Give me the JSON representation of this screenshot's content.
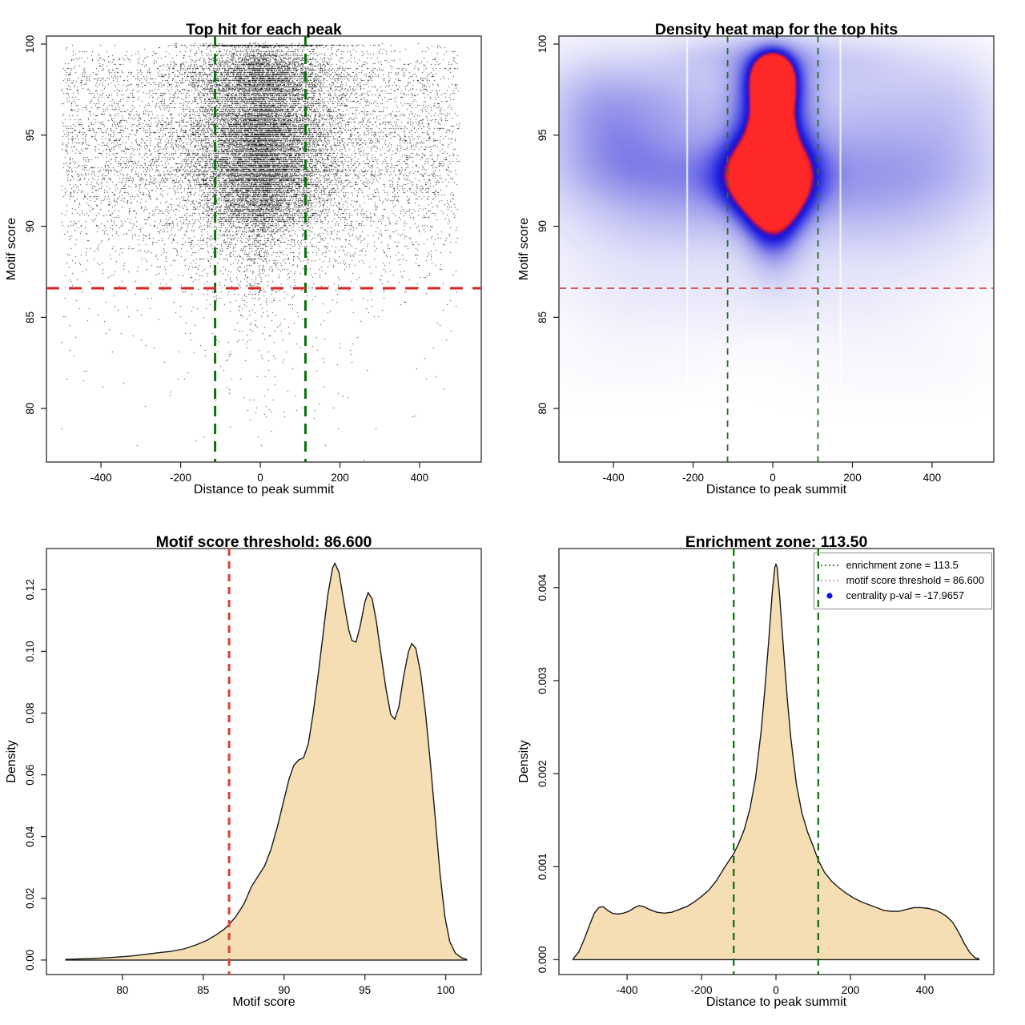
{
  "figure": {
    "background": "#ffffff"
  },
  "values": {
    "motif_score_threshold": 86.6,
    "enrichment_zone": 113.5,
    "centrality_p_val": -17.9657
  },
  "colors": {
    "density_fill": "#f5deb3",
    "density_stroke": "#1a1a1a",
    "axis": "#2b2b2b",
    "scatter_point": "#000000",
    "red_line_thick": "#d42a2a",
    "green_line_thick": "#0e6f0e",
    "heat_red_line": "#e04848",
    "heat_green_line": "#2a6e2a",
    "legend_green": "#2a7a2a",
    "legend_red": "#ef8080",
    "legend_blue": "#1111e0"
  },
  "chart_data": [
    {
      "type": "scatter",
      "title": "Top hit for each peak",
      "xlabel": "Distance to peak summit",
      "ylabel": "Motif score",
      "x_domain": [
        -537,
        555
      ],
      "y_domain": [
        77.06,
        100.44
      ],
      "x_ticks": [
        -400,
        -200,
        0,
        200,
        400
      ],
      "x_tick_labels": [
        "-400",
        "-200",
        "0",
        "200",
        "400"
      ],
      "y_ticks": [
        80,
        85,
        90,
        95,
        100
      ],
      "y_tick_labels": [
        "80",
        "85",
        "90",
        "95",
        "100"
      ],
      "hlines": [
        {
          "y": 86.6,
          "color": "#d42a2a",
          "width": 3.2,
          "dash": [
            16,
            12
          ]
        }
      ],
      "vlines": [
        {
          "x": -113.5,
          "color": "#0e6f0e",
          "width": 3,
          "dash": [
            13,
            9
          ]
        },
        {
          "x": 113.5,
          "color": "#0e6f0e",
          "width": 3,
          "dash": [
            13,
            9
          ]
        }
      ],
      "scatter": {
        "seed": 20,
        "point_alpha": 0.92,
        "quantize_step": 0.1137,
        "jitter": 0.015,
        "x_clip": [
          -500,
          500
        ],
        "y_clip": [
          77.0,
          100.08
        ],
        "populations": [
          {
            "n": 13000,
            "x": {
              "dist": "curve",
              "panel": 3
            },
            "y": {
              "dist": "curve",
              "panel": 2
            }
          },
          {
            "n": 8000,
            "x": {
              "dist": "normal",
              "mu": 5,
              "sd": 78
            },
            "y": {
              "dist": "curve",
              "panel": 2,
              "min": 90.2
            }
          },
          {
            "n": 2600,
            "x": {
              "dist": "normal",
              "mu": 0,
              "sd": 140
            },
            "y": {
              "dist": "curve",
              "panel": 2,
              "min": 88
            }
          },
          {
            "n": 500,
            "x": {
              "dist": "normal",
              "mu": 15,
              "sd": 95
            },
            "y": {
              "dist": "const",
              "value": 99.95
            }
          }
        ]
      }
    },
    {
      "type": "heatmap",
      "title": "Density heat map for the top hits",
      "xlabel": "Distance to peak summit",
      "ylabel": "Motif score",
      "x_domain": [
        -537,
        555
      ],
      "y_domain": [
        77.06,
        100.44
      ],
      "x_ticks": [
        -400,
        -200,
        0,
        200,
        400
      ],
      "x_tick_labels": [
        "-400",
        "-200",
        "0",
        "200",
        "400"
      ],
      "y_ticks": [
        80,
        85,
        90,
        95,
        100
      ],
      "y_tick_labels": [
        "80",
        "85",
        "90",
        "95",
        "100"
      ],
      "hlines": [
        {
          "y": 86.6,
          "color": "#e04848",
          "width": 1.8,
          "dash": [
            9,
            6
          ]
        }
      ],
      "vlines": [
        {
          "x": -113.5,
          "color": "#2a6e2a",
          "width": 1.8,
          "dash": [
            8,
            7
          ]
        },
        {
          "x": 113.5,
          "color": "#2a6e2a",
          "width": 1.8,
          "dash": [
            8,
            7
          ]
        }
      ],
      "white_vlines": [
        -215,
        170
      ],
      "colormap": [
        [
          0,
          "#ffffff"
        ],
        [
          0.07,
          "#f2f2fc"
        ],
        [
          0.18,
          "#dcdcf8"
        ],
        [
          0.32,
          "#bcbcf2"
        ],
        [
          0.47,
          "#9292ea"
        ],
        [
          0.62,
          "#5555e6"
        ],
        [
          0.75,
          "#2525e0"
        ],
        [
          0.84,
          "#1a14cf"
        ],
        [
          0.89,
          "#5a10b4"
        ],
        [
          0.935,
          "#b81050"
        ],
        [
          0.97,
          "#ee1f1f"
        ],
        [
          1,
          "#ff2828"
        ]
      ],
      "components": [
        [
          0,
          98.2,
          30,
          0.8,
          1.05
        ],
        [
          2,
          97.4,
          27,
          0.85,
          0.8
        ],
        [
          -2,
          95.1,
          27,
          0.8,
          1.0
        ],
        [
          -2,
          94.2,
          28,
          0.75,
          0.8
        ],
        [
          -5,
          93.2,
          36,
          0.75,
          1.05
        ],
        [
          0,
          96.3,
          26,
          0.95,
          0.75
        ],
        [
          0,
          97.9,
          62,
          1.3,
          0.5
        ],
        [
          -5,
          95,
          60,
          2.3,
          0.55
        ],
        [
          -10,
          93.4,
          75,
          1.5,
          0.5
        ],
        [
          -5,
          92.2,
          65,
          1.1,
          0.5
        ],
        [
          0,
          91.2,
          55,
          1.2,
          0.38
        ],
        [
          0,
          90.2,
          48,
          1.4,
          0.28
        ],
        [
          5,
          89.2,
          45,
          1.7,
          0.18
        ],
        [
          -25,
          92.8,
          100,
          1.2,
          0.3
        ],
        [
          -270,
          97.6,
          160,
          1.5,
          0.17
        ],
        [
          270,
          97.5,
          180,
          1.6,
          0.13
        ],
        [
          -80,
          99.5,
          150,
          0.9,
          0.18
        ],
        [
          180,
          99.3,
          160,
          1.0,
          0.12
        ],
        [
          -420,
          95.3,
          110,
          2.2,
          0.15
        ],
        [
          -300,
          94.9,
          150,
          1.9,
          0.16
        ],
        [
          300,
          94.7,
          190,
          2.0,
          0.15
        ],
        [
          -330,
          92.7,
          170,
          1.5,
          0.17
        ],
        [
          330,
          92.6,
          190,
          1.6,
          0.15
        ],
        [
          0,
          94.6,
          320,
          2.6,
          0.13
        ],
        [
          0,
          92.4,
          380,
          2.2,
          0.1
        ],
        [
          -220,
          90.9,
          200,
          1.6,
          0.1
        ],
        [
          240,
          90.7,
          210,
          1.6,
          0.09
        ],
        [
          -320,
          89.4,
          190,
          1.7,
          0.08
        ],
        [
          310,
          89.2,
          190,
          1.7,
          0.07
        ],
        [
          0,
          88.4,
          420,
          2.0,
          0.06
        ],
        [
          -480,
          97,
          90,
          2.5,
          0.12
        ],
        [
          470,
          96.5,
          90,
          2.5,
          0.1
        ],
        [
          -360,
          85.6,
          130,
          1.6,
          0.04
        ],
        [
          -160,
          84.6,
          110,
          1.3,
          0.03
        ],
        [
          90,
          85.1,
          150,
          1.6,
          0.035
        ],
        [
          290,
          84.1,
          130,
          1.5,
          0.028
        ],
        [
          -260,
          82.4,
          110,
          1.1,
          0.022
        ],
        [
          210,
          82,
          130,
          1.3,
          0.02
        ],
        [
          0,
          86.4,
          420,
          1.3,
          0.045
        ],
        [
          -450,
          83,
          100,
          1.5,
          0.025
        ],
        [
          430,
          82.5,
          100,
          1.5,
          0.02
        ]
      ]
    },
    {
      "type": "density",
      "title": "Motif score threshold: 86.600",
      "xlabel": "Motif score",
      "ylabel": "Density",
      "x_domain": [
        75.3,
        102.2
      ],
      "y_domain": [
        -0.0047,
        0.1333
      ],
      "x_ticks": [
        80,
        85,
        90,
        95,
        100
      ],
      "x_tick_labels": [
        "80",
        "85",
        "90",
        "95",
        "100"
      ],
      "y_ticks": [
        0,
        0.02,
        0.04,
        0.06,
        0.08,
        0.1,
        0.12
      ],
      "y_tick_labels": [
        "0.00",
        "0.02",
        "0.04",
        "0.06",
        "0.08",
        "0.10",
        "0.12"
      ],
      "fill": "#f5deb3",
      "stroke": "#1a1a1a",
      "vlines": [
        {
          "x": 86.6,
          "color": "#d9403a",
          "width": 3,
          "dash": [
            9,
            7
          ]
        }
      ],
      "hlines": [],
      "curve": [
        [
          76.5,
          0.0002
        ],
        [
          77.5,
          0.0004
        ],
        [
          78.5,
          0.0006
        ],
        [
          79.5,
          0.0009
        ],
        [
          80.5,
          0.0013
        ],
        [
          81.5,
          0.0019
        ],
        [
          82.3,
          0.0024
        ],
        [
          83,
          0.0028
        ],
        [
          83.8,
          0.0036
        ],
        [
          84.5,
          0.0048
        ],
        [
          85.2,
          0.0063
        ],
        [
          85.8,
          0.0082
        ],
        [
          86.3,
          0.01
        ],
        [
          86.6,
          0.0115
        ],
        [
          87,
          0.014
        ],
        [
          87.5,
          0.018
        ],
        [
          88,
          0.024
        ],
        [
          88.4,
          0.0272
        ],
        [
          88.8,
          0.0305
        ],
        [
          89.2,
          0.036
        ],
        [
          89.6,
          0.0435
        ],
        [
          90,
          0.052
        ],
        [
          90.3,
          0.0585
        ],
        [
          90.6,
          0.063
        ],
        [
          90.9,
          0.0648
        ],
        [
          91.2,
          0.0655
        ],
        [
          91.5,
          0.07
        ],
        [
          91.8,
          0.08
        ],
        [
          92.1,
          0.092
        ],
        [
          92.4,
          0.105
        ],
        [
          92.7,
          0.118
        ],
        [
          93,
          0.127
        ],
        [
          93.15,
          0.1285
        ],
        [
          93.4,
          0.1255
        ],
        [
          93.7,
          0.116
        ],
        [
          94,
          0.107
        ],
        [
          94.2,
          0.1035
        ],
        [
          94.45,
          0.103
        ],
        [
          94.7,
          0.108
        ],
        [
          95,
          0.116
        ],
        [
          95.2,
          0.119
        ],
        [
          95.45,
          0.117
        ],
        [
          95.7,
          0.11
        ],
        [
          96,
          0.099
        ],
        [
          96.3,
          0.088
        ],
        [
          96.6,
          0.0795
        ],
        [
          96.85,
          0.078
        ],
        [
          97.1,
          0.082
        ],
        [
          97.4,
          0.092
        ],
        [
          97.7,
          0.1
        ],
        [
          97.9,
          0.1025
        ],
        [
          98.15,
          0.101
        ],
        [
          98.45,
          0.093
        ],
        [
          98.75,
          0.08
        ],
        [
          99.05,
          0.064
        ],
        [
          99.35,
          0.046
        ],
        [
          99.65,
          0.028
        ],
        [
          99.95,
          0.014
        ],
        [
          100.25,
          0.006
        ],
        [
          100.6,
          0.0022
        ],
        [
          101,
          0.0007
        ],
        [
          101.3,
          0.0002
        ]
      ]
    },
    {
      "type": "density",
      "title": "Enrichment zone: 113.50",
      "xlabel": "Distance to peak summit",
      "ylabel": "Density",
      "x_domain": [
        -583,
        585
      ],
      "y_domain": [
        -0.00016,
        0.00442
      ],
      "x_ticks": [
        -400,
        -200,
        0,
        200,
        400
      ],
      "x_tick_labels": [
        "-400",
        "-200",
        "0",
        "200",
        "400"
      ],
      "y_ticks": [
        0,
        0.001,
        0.002,
        0.003,
        0.004
      ],
      "y_tick_labels": [
        "0.000",
        "0.001",
        "0.002",
        "0.003",
        "0.004"
      ],
      "fill": "#f5deb3",
      "stroke": "#1a1a1a",
      "vlines": [
        {
          "x": -113.5,
          "color": "#0f6b0f",
          "width": 2.2,
          "dash": [
            9,
            7
          ]
        },
        {
          "x": 113.5,
          "color": "#0f6b0f",
          "width": 2.2,
          "dash": [
            9,
            7
          ]
        }
      ],
      "hlines": [],
      "curve": [
        [
          -545,
          1e-05
        ],
        [
          -530,
          8e-05
        ],
        [
          -515,
          0.00022
        ],
        [
          -500,
          0.00038
        ],
        [
          -488,
          0.0005
        ],
        [
          -476,
          0.00056
        ],
        [
          -464,
          0.00057
        ],
        [
          -452,
          0.00053
        ],
        [
          -440,
          0.0005
        ],
        [
          -425,
          0.00049
        ],
        [
          -410,
          0.0005
        ],
        [
          -395,
          0.00052
        ],
        [
          -380,
          0.00056
        ],
        [
          -368,
          0.00058
        ],
        [
          -355,
          0.00057
        ],
        [
          -340,
          0.00054
        ],
        [
          -320,
          0.00051
        ],
        [
          -300,
          0.0005
        ],
        [
          -280,
          0.00051
        ],
        [
          -260,
          0.00054
        ],
        [
          -240,
          0.00057
        ],
        [
          -220,
          0.00062
        ],
        [
          -200,
          0.00068
        ],
        [
          -180,
          0.00075
        ],
        [
          -160,
          0.00085
        ],
        [
          -140,
          0.00098
        ],
        [
          -120,
          0.0011
        ],
        [
          -113.5,
          0.00114
        ],
        [
          -100,
          0.00125
        ],
        [
          -85,
          0.0014
        ],
        [
          -70,
          0.00162
        ],
        [
          -55,
          0.00195
        ],
        [
          -40,
          0.00245
        ],
        [
          -30,
          0.0029
        ],
        [
          -20,
          0.0034
        ],
        [
          -10,
          0.00395
        ],
        [
          -3,
          0.00422
        ],
        [
          0,
          0.00425
        ],
        [
          3,
          0.00422
        ],
        [
          10,
          0.0039
        ],
        [
          20,
          0.00335
        ],
        [
          30,
          0.00282
        ],
        [
          40,
          0.00238
        ],
        [
          55,
          0.00188
        ],
        [
          70,
          0.00157
        ],
        [
          85,
          0.00137
        ],
        [
          100,
          0.00122
        ],
        [
          113.5,
          0.00107
        ],
        [
          130,
          0.00094
        ],
        [
          150,
          0.00084
        ],
        [
          170,
          0.00077
        ],
        [
          190,
          0.00071
        ],
        [
          210,
          0.00066
        ],
        [
          230,
          0.00062
        ],
        [
          250,
          0.00059
        ],
        [
          270,
          0.00056
        ],
        [
          290,
          0.00053
        ],
        [
          310,
          0.00052
        ],
        [
          330,
          0.00052
        ],
        [
          350,
          0.00054
        ],
        [
          370,
          0.00056
        ],
        [
          390,
          0.00056
        ],
        [
          410,
          0.00055
        ],
        [
          430,
          0.00053
        ],
        [
          445,
          0.0005
        ],
        [
          460,
          0.00046
        ],
        [
          475,
          0.0004
        ],
        [
          490,
          0.0003
        ],
        [
          505,
          0.00018
        ],
        [
          520,
          8e-05
        ],
        [
          535,
          2e-05
        ],
        [
          545,
          1e-05
        ]
      ],
      "legend": [
        {
          "type": "line",
          "color": "#2a7a2a",
          "label": "enrichment zone = 113.5"
        },
        {
          "type": "line",
          "color": "#ef8080",
          "label": "motif score threshold = 86.600"
        },
        {
          "type": "point",
          "color": "#1111e0",
          "label": "centrality p-val = -17.9657"
        }
      ]
    }
  ]
}
